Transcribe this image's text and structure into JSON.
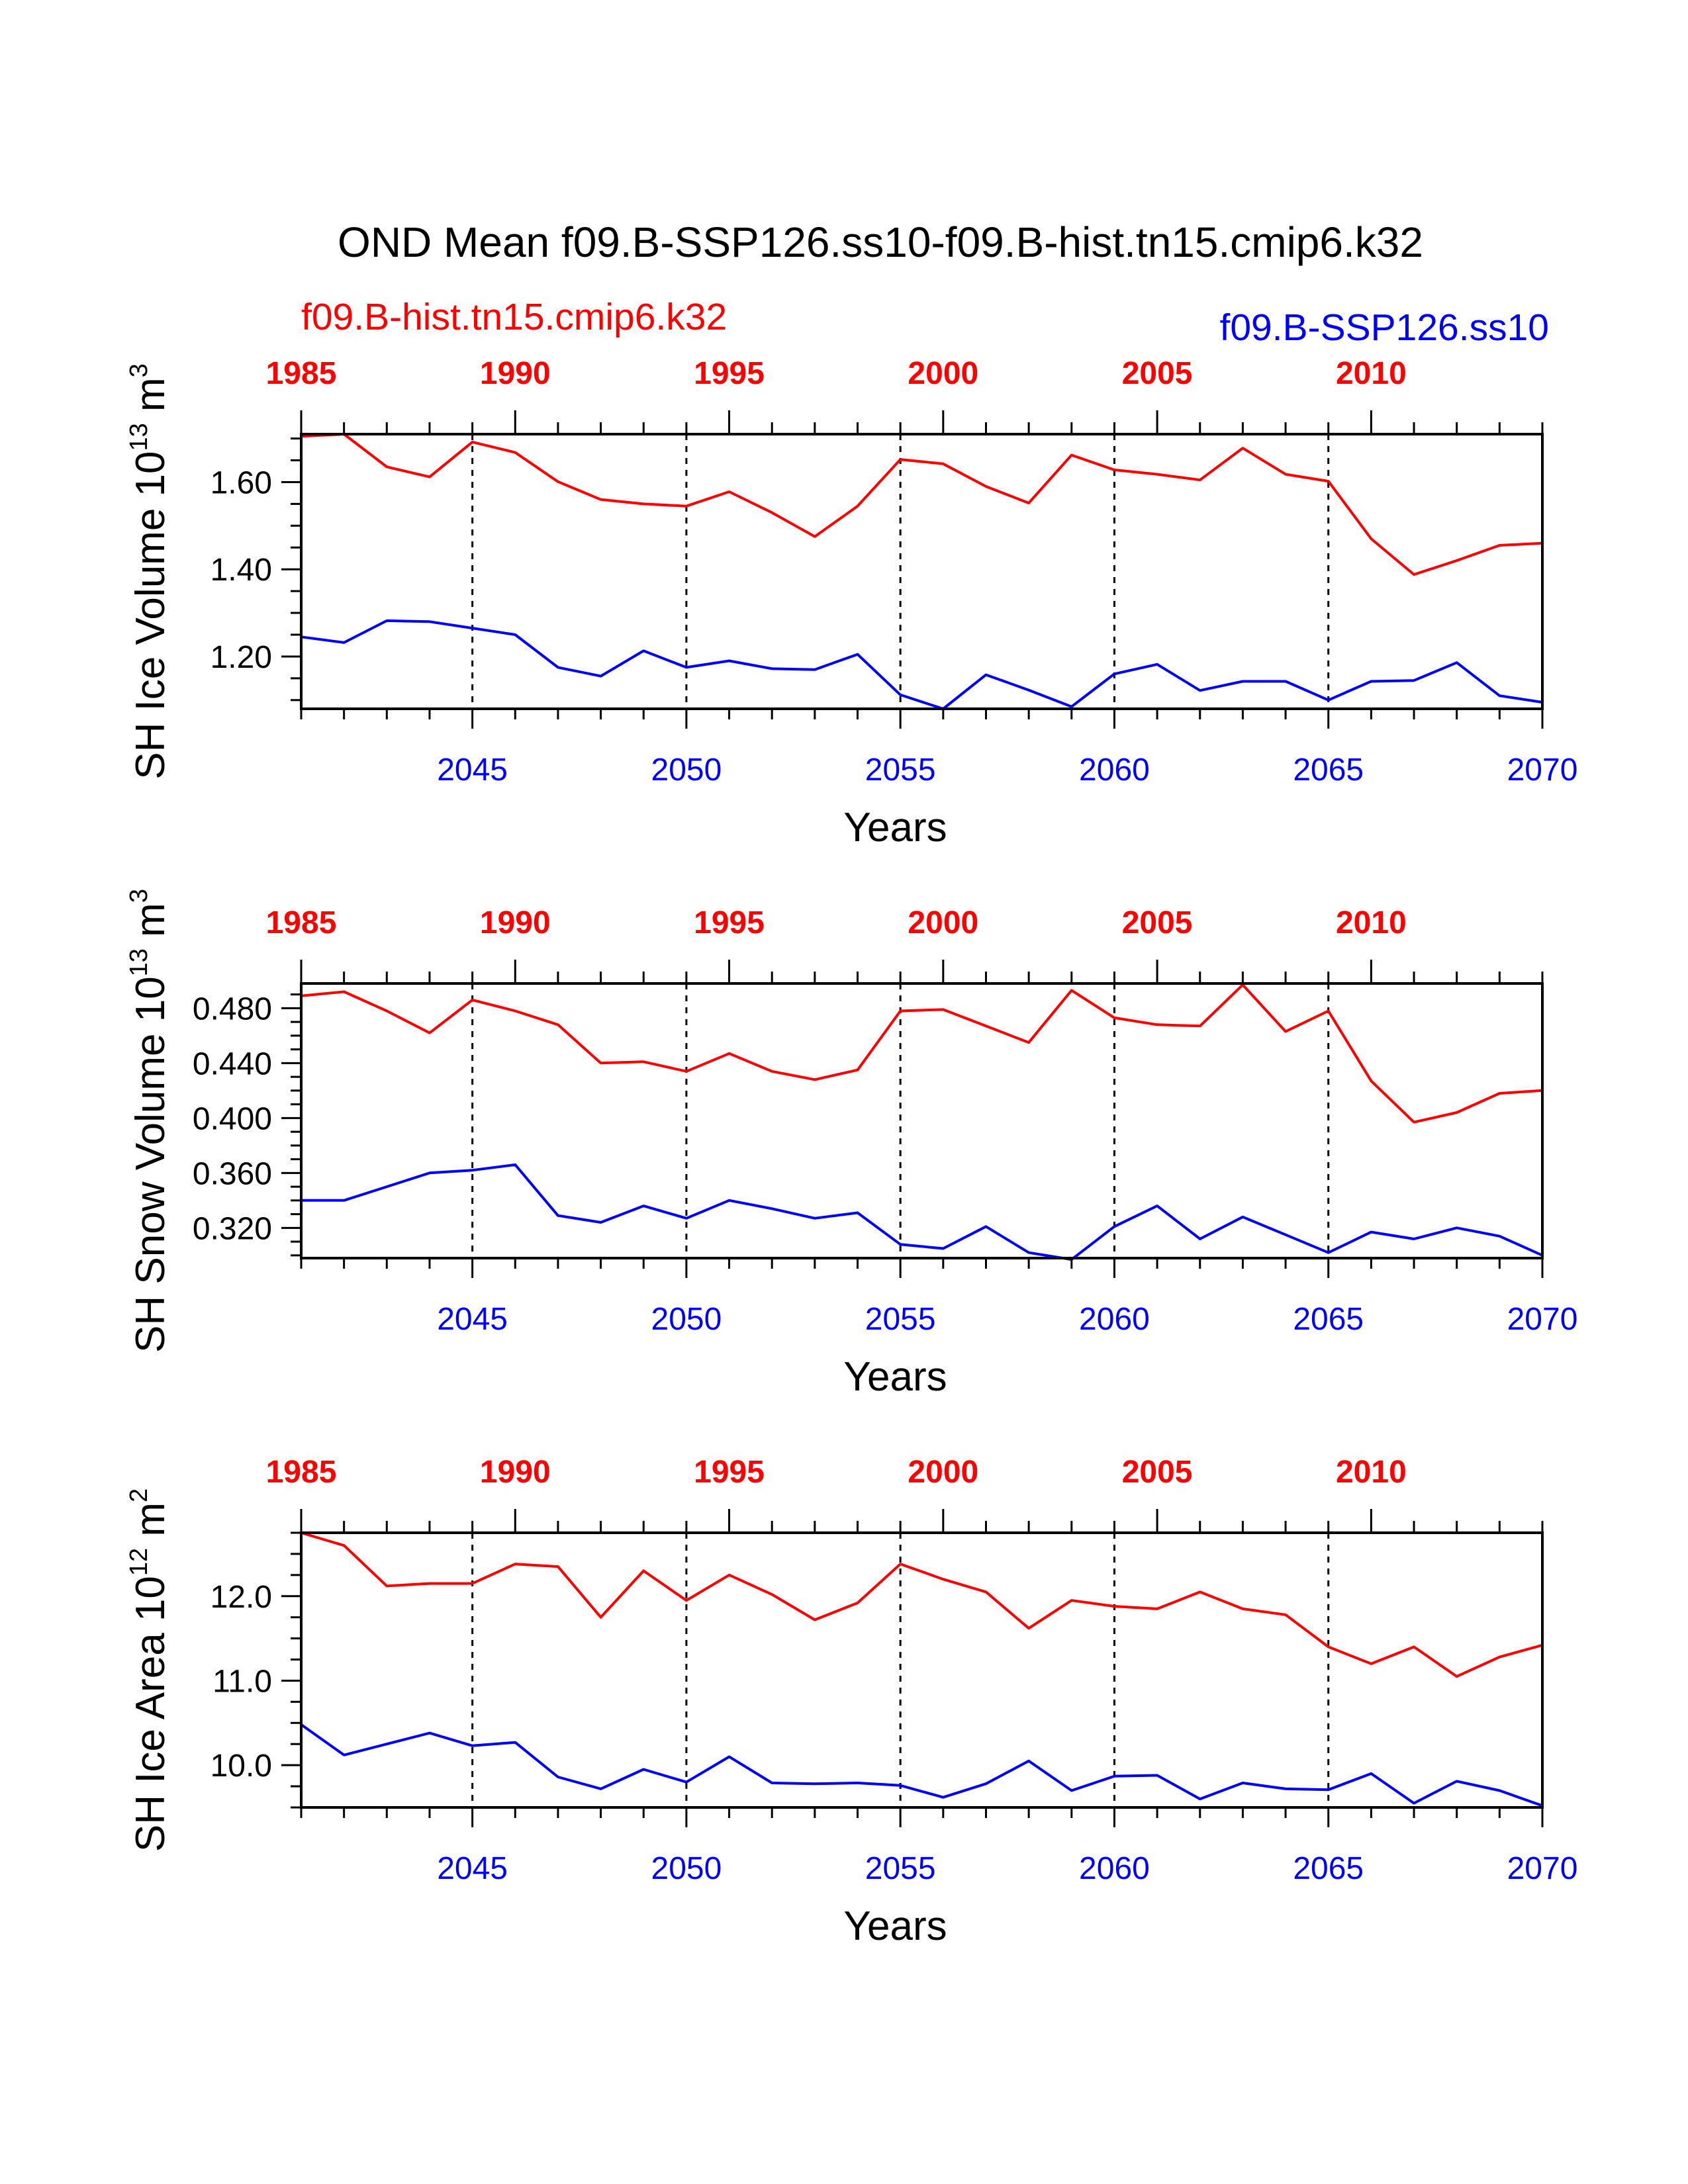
{
  "figure": {
    "title": "OND Mean f09.B-SSP126.ss10-f09.B-hist.tn15.cmip6.k32",
    "legend_hist": "f09.B-hist.tn15.cmip6.k32",
    "legend_ssp": "f09.B-SSP126.ss10"
  },
  "colors": {
    "hist": "#ff0000",
    "ssp": "#0000ff",
    "axis": "#000000"
  },
  "chart_data": [
    {
      "type": "line",
      "ylabel": "SH Ice Volume 10",
      "ylabel_exp": "13",
      "ylabel_unit": " m",
      "ylabel_unit_exp": "3",
      "xlabel": "Years",
      "ylim": [
        1.08,
        1.71
      ],
      "yticks": [
        1.2,
        1.4,
        1.6
      ],
      "ytick_labels": [
        "1.20",
        "1.40",
        "1.60"
      ],
      "yminor_step": 0.05,
      "bottom_x": {
        "range": [
          2041,
          2070
        ],
        "ticks": [
          2045,
          2050,
          2055,
          2060,
          2065,
          2070
        ],
        "labels": [
          "2045",
          "2050",
          "2055",
          "2060",
          "2065",
          "2070"
        ]
      },
      "top_x": {
        "range": [
          1985,
          2014
        ],
        "ticks": [
          1985,
          1990,
          1995,
          2000,
          2005,
          2010
        ],
        "labels": [
          "1985",
          "1990",
          "1995",
          "2000",
          "2005",
          "2010"
        ]
      },
      "series": [
        {
          "name": "f09.B-hist.tn15.cmip6.k32",
          "years": [
            1985,
            1986,
            1987,
            1988,
            1989,
            1990,
            1991,
            1992,
            1993,
            1994,
            1995,
            1996,
            1997,
            1998,
            1999,
            2000,
            2001,
            2002,
            2003,
            2004,
            2005,
            2006,
            2007,
            2008,
            2009,
            2010,
            2011,
            2012,
            2013,
            2014
          ],
          "values": [
            1.705,
            1.71,
            1.635,
            1.612,
            1.692,
            1.668,
            1.601,
            1.56,
            1.55,
            1.545,
            1.578,
            1.53,
            1.475,
            1.545,
            1.652,
            1.642,
            1.59,
            1.552,
            1.662,
            1.628,
            1.618,
            1.605,
            1.678,
            1.618,
            1.602,
            1.47,
            1.388,
            1.42,
            1.455,
            1.46
          ]
        },
        {
          "name": "f09.B-SSP126.ss10",
          "years": [
            2041,
            2042,
            2043,
            2044,
            2045,
            2046,
            2047,
            2048,
            2049,
            2050,
            2051,
            2052,
            2053,
            2054,
            2055,
            2056,
            2057,
            2058,
            2059,
            2060,
            2061,
            2062,
            2063,
            2064,
            2065,
            2066,
            2067,
            2068,
            2069,
            2070
          ],
          "values": [
            1.245,
            1.232,
            1.282,
            1.28,
            1.265,
            1.25,
            1.175,
            1.155,
            1.213,
            1.175,
            1.19,
            1.172,
            1.17,
            1.205,
            1.112,
            1.08,
            1.158,
            1.123,
            1.085,
            1.16,
            1.182,
            1.122,
            1.143,
            1.143,
            1.1,
            1.143,
            1.145,
            1.186,
            1.11,
            1.095
          ]
        }
      ]
    },
    {
      "type": "line",
      "ylabel": "SH Snow Volume 10",
      "ylabel_exp": "13",
      "ylabel_unit": " m",
      "ylabel_unit_exp": "3",
      "xlabel": "Years",
      "ylim": [
        0.298,
        0.498
      ],
      "yticks": [
        0.32,
        0.36,
        0.4,
        0.44,
        0.48
      ],
      "ytick_labels": [
        "0.320",
        "0.360",
        "0.400",
        "0.440",
        "0.480"
      ],
      "yminor_step": 0.01,
      "bottom_x": {
        "range": [
          2041,
          2070
        ],
        "ticks": [
          2045,
          2050,
          2055,
          2060,
          2065,
          2070
        ],
        "labels": [
          "2045",
          "2050",
          "2055",
          "2060",
          "2065",
          "2070"
        ]
      },
      "top_x": {
        "range": [
          1985,
          2014
        ],
        "ticks": [
          1985,
          1990,
          1995,
          2000,
          2005,
          2010
        ],
        "labels": [
          "1985",
          "1990",
          "1995",
          "2000",
          "2005",
          "2010"
        ]
      },
      "series": [
        {
          "name": "f09.B-hist.tn15.cmip6.k32",
          "years": [
            1985,
            1986,
            1987,
            1988,
            1989,
            1990,
            1991,
            1992,
            1993,
            1994,
            1995,
            1996,
            1997,
            1998,
            1999,
            2000,
            2001,
            2002,
            2003,
            2004,
            2005,
            2006,
            2007,
            2008,
            2009,
            2010,
            2011,
            2012,
            2013,
            2014
          ],
          "values": [
            0.489,
            0.492,
            0.478,
            0.462,
            0.486,
            0.478,
            0.468,
            0.44,
            0.441,
            0.434,
            0.447,
            0.434,
            0.428,
            0.435,
            0.478,
            0.479,
            0.467,
            0.455,
            0.493,
            0.473,
            0.468,
            0.467,
            0.497,
            0.463,
            0.478,
            0.427,
            0.397,
            0.404,
            0.418,
            0.42
          ]
        },
        {
          "name": "f09.B-SSP126.ss10",
          "years": [
            2041,
            2042,
            2043,
            2044,
            2045,
            2046,
            2047,
            2048,
            2049,
            2050,
            2051,
            2052,
            2053,
            2054,
            2055,
            2056,
            2057,
            2058,
            2059,
            2060,
            2061,
            2062,
            2063,
            2064,
            2065,
            2066,
            2067,
            2068,
            2069,
            2070
          ],
          "values": [
            0.34,
            0.34,
            0.35,
            0.36,
            0.362,
            0.366,
            0.329,
            0.324,
            0.336,
            0.327,
            0.34,
            0.334,
            0.327,
            0.331,
            0.308,
            0.305,
            0.321,
            0.302,
            0.297,
            0.321,
            0.336,
            0.312,
            0.328,
            0.315,
            0.302,
            0.317,
            0.312,
            0.32,
            0.314,
            0.3
          ]
        }
      ]
    },
    {
      "type": "line",
      "ylabel": "SH Ice Area 10",
      "ylabel_exp": "12",
      "ylabel_unit": " m",
      "ylabel_unit_exp": "2",
      "xlabel": "Years",
      "ylim": [
        9.5,
        12.75
      ],
      "yticks": [
        10.0,
        11.0,
        12.0
      ],
      "ytick_labels": [
        "10.0",
        "11.0",
        "12.0"
      ],
      "yminor_step": 0.25,
      "bottom_x": {
        "range": [
          2041,
          2070
        ],
        "ticks": [
          2045,
          2050,
          2055,
          2060,
          2065,
          2070
        ],
        "labels": [
          "2045",
          "2050",
          "2055",
          "2060",
          "2065",
          "2070"
        ]
      },
      "top_x": {
        "range": [
          1985,
          2014
        ],
        "ticks": [
          1985,
          1990,
          1995,
          2000,
          2005,
          2010
        ],
        "labels": [
          "1985",
          "1990",
          "1995",
          "2000",
          "2005",
          "2010"
        ]
      },
      "series": [
        {
          "name": "f09.B-hist.tn15.cmip6.k32",
          "years": [
            1985,
            1986,
            1987,
            1988,
            1989,
            1990,
            1991,
            1992,
            1993,
            1994,
            1995,
            1996,
            1997,
            1998,
            1999,
            2000,
            2001,
            2002,
            2003,
            2004,
            2005,
            2006,
            2007,
            2008,
            2009,
            2010,
            2011,
            2012,
            2013,
            2014
          ],
          "values": [
            12.75,
            12.6,
            12.12,
            12.15,
            12.15,
            12.38,
            12.35,
            11.75,
            12.3,
            11.95,
            12.25,
            12.02,
            11.72,
            11.92,
            12.38,
            12.2,
            12.05,
            11.62,
            11.95,
            11.88,
            11.85,
            12.05,
            11.85,
            11.78,
            11.4,
            11.2,
            11.4,
            11.05,
            11.28,
            11.42
          ]
        },
        {
          "name": "f09.B-SSP126.ss10",
          "years": [
            2041,
            2042,
            2043,
            2044,
            2045,
            2046,
            2047,
            2048,
            2049,
            2050,
            2051,
            2052,
            2053,
            2054,
            2055,
            2056,
            2057,
            2058,
            2059,
            2060,
            2061,
            2062,
            2063,
            2064,
            2065,
            2066,
            2067,
            2068,
            2069,
            2070
          ],
          "values": [
            10.48,
            10.12,
            10.25,
            10.38,
            10.23,
            10.27,
            9.86,
            9.72,
            9.95,
            9.8,
            10.1,
            9.79,
            9.78,
            9.79,
            9.76,
            9.62,
            9.78,
            10.05,
            9.7,
            9.87,
            9.88,
            9.6,
            9.79,
            9.72,
            9.71,
            9.9,
            9.55,
            9.81,
            9.7,
            9.52
          ]
        }
      ]
    }
  ]
}
